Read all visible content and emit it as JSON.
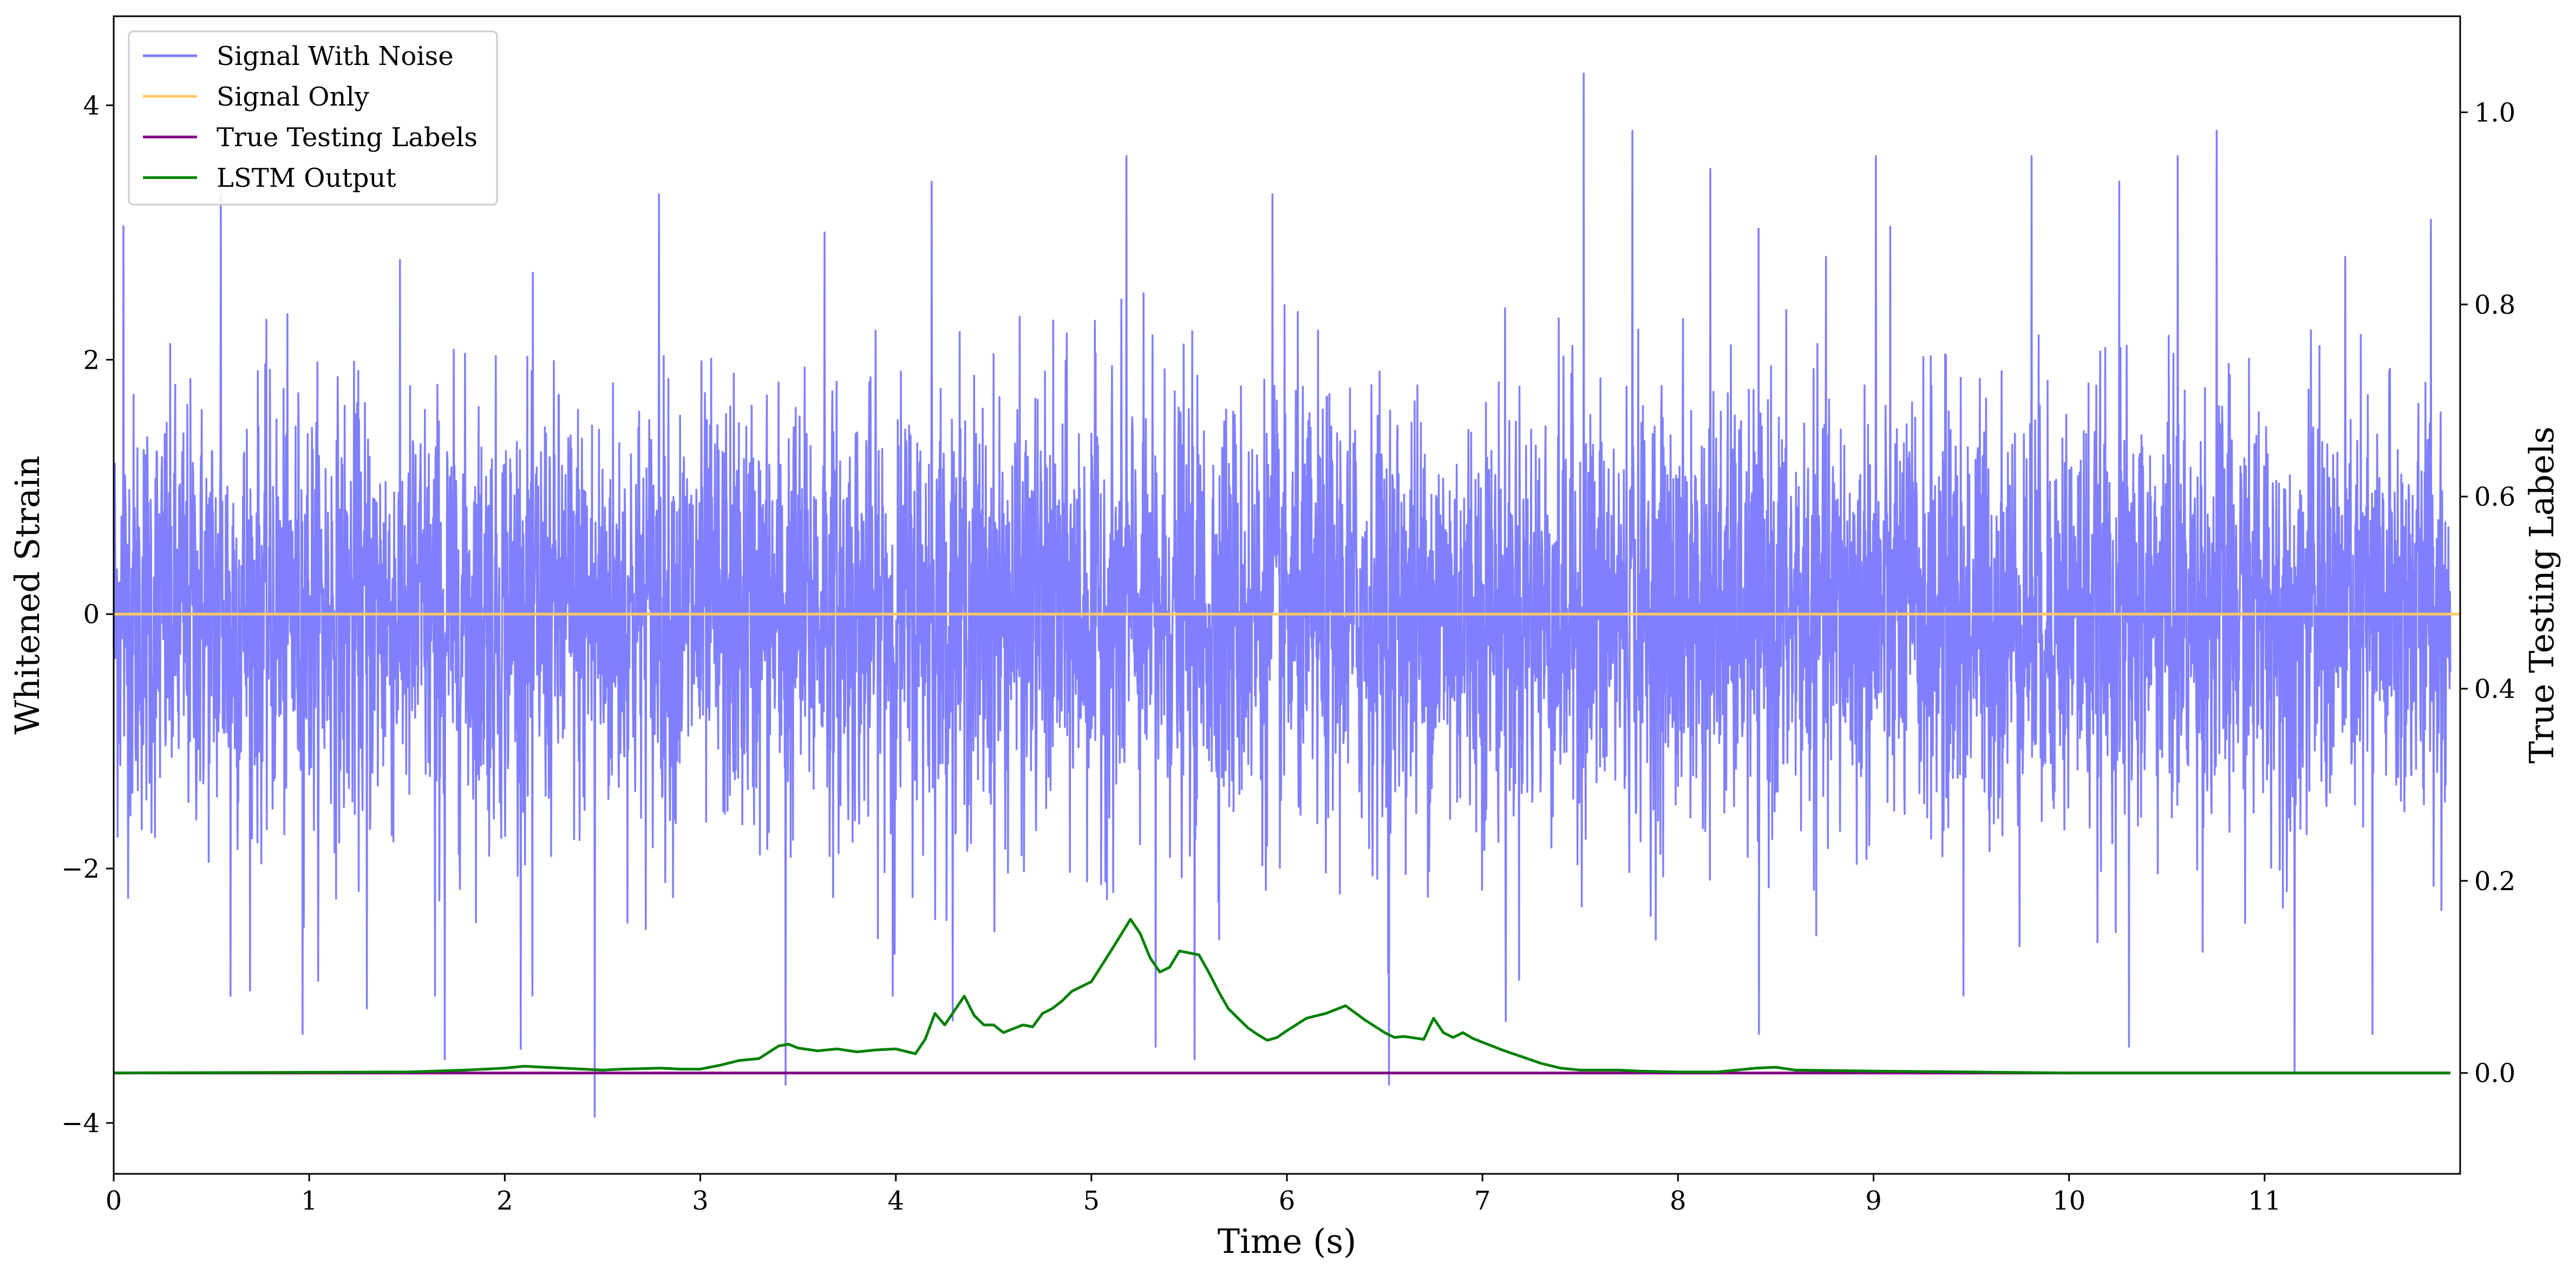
{
  "chart_data": {
    "type": "line",
    "xlabel": "Time (s)",
    "ylabel": "Whitened Strain",
    "ylabel_right": "True Testing Labels",
    "xlim": [
      0,
      12
    ],
    "ylim": [
      -4.4,
      4.7
    ],
    "ylim_right": [
      -0.105,
      1.1
    ],
    "x_ticks": [
      0,
      1,
      2,
      3,
      4,
      5,
      6,
      7,
      8,
      9,
      10,
      11
    ],
    "y_ticks": [
      -4,
      -2,
      0,
      2,
      4
    ],
    "y_ticks_right": [
      0.0,
      0.2,
      0.4,
      0.6,
      0.8,
      1.0
    ],
    "grid": false,
    "legend_position": "top-left",
    "series": [
      {
        "name": "Signal With Noise",
        "axis": "left",
        "color": "#7f7fff",
        "noise_std": 0.85,
        "spikes": [
          [
            0.05,
            3.05
          ],
          [
            0.55,
            3.3
          ],
          [
            0.6,
            -3.0
          ],
          [
            0.97,
            -3.3
          ],
          [
            1.3,
            -3.1
          ],
          [
            1.65,
            -3.0
          ],
          [
            1.7,
            -3.5
          ],
          [
            2.15,
            -3.0
          ],
          [
            2.47,
            -3.95
          ],
          [
            2.8,
            3.3
          ],
          [
            3.45,
            -3.7
          ],
          [
            3.65,
            3.0
          ],
          [
            4.0,
            -3.0
          ],
          [
            4.2,
            3.4
          ],
          [
            5.2,
            3.6
          ],
          [
            5.35,
            -3.4
          ],
          [
            5.55,
            -3.5
          ],
          [
            5.95,
            3.3
          ],
          [
            6.55,
            -3.7
          ],
          [
            7.15,
            -3.2
          ],
          [
            7.55,
            4.25
          ],
          [
            7.8,
            3.8
          ],
          [
            8.2,
            3.5
          ],
          [
            8.45,
            -3.3
          ],
          [
            9.05,
            3.6
          ],
          [
            9.5,
            -3.0
          ],
          [
            9.85,
            3.6
          ],
          [
            10.3,
            3.4
          ],
          [
            10.35,
            -3.4
          ],
          [
            10.6,
            3.6
          ],
          [
            10.8,
            3.8
          ],
          [
            11.2,
            -3.6
          ],
          [
            11.6,
            -3.3
          ],
          [
            11.9,
            3.1
          ]
        ]
      },
      {
        "name": "Signal Only",
        "axis": "left",
        "color": "#ffc966",
        "x": [
          0,
          12
        ],
        "y": [
          0,
          0
        ]
      },
      {
        "name": "True Testing Labels",
        "axis": "right",
        "color": "#800080",
        "x": [
          0,
          11.95
        ],
        "y": [
          0,
          0
        ]
      },
      {
        "name": "LSTM Output",
        "axis": "right",
        "color": "#008000",
        "x": [
          0,
          1.5,
          1.8,
          2.0,
          2.1,
          2.2,
          2.4,
          2.5,
          2.6,
          2.8,
          2.9,
          3.0,
          3.1,
          3.2,
          3.3,
          3.4,
          3.45,
          3.5,
          3.6,
          3.7,
          3.8,
          3.9,
          4.0,
          4.1,
          4.15,
          4.2,
          4.25,
          4.3,
          4.35,
          4.4,
          4.45,
          4.5,
          4.55,
          4.6,
          4.65,
          4.7,
          4.75,
          4.8,
          4.85,
          4.9,
          5.0,
          5.1,
          5.2,
          5.25,
          5.3,
          5.35,
          5.4,
          5.45,
          5.5,
          5.55,
          5.6,
          5.65,
          5.7,
          5.75,
          5.8,
          5.85,
          5.9,
          5.95,
          6.0,
          6.1,
          6.2,
          6.3,
          6.4,
          6.5,
          6.55,
          6.6,
          6.7,
          6.75,
          6.8,
          6.85,
          6.9,
          6.95,
          7.0,
          7.1,
          7.2,
          7.3,
          7.4,
          7.5,
          7.6,
          7.7,
          7.8,
          8.0,
          8.2,
          8.4,
          8.5,
          8.6,
          9.0,
          9.5,
          10.0,
          11.0,
          11.95
        ],
        "y": [
          0.0,
          0.001,
          0.003,
          0.005,
          0.007,
          0.006,
          0.004,
          0.003,
          0.004,
          0.005,
          0.004,
          0.004,
          0.008,
          0.013,
          0.015,
          0.028,
          0.03,
          0.026,
          0.023,
          0.025,
          0.022,
          0.024,
          0.025,
          0.02,
          0.035,
          0.062,
          0.05,
          0.065,
          0.08,
          0.06,
          0.05,
          0.05,
          0.042,
          0.046,
          0.05,
          0.048,
          0.062,
          0.067,
          0.075,
          0.085,
          0.095,
          0.127,
          0.16,
          0.145,
          0.12,
          0.105,
          0.11,
          0.127,
          0.125,
          0.123,
          0.105,
          0.085,
          0.067,
          0.057,
          0.047,
          0.04,
          0.034,
          0.037,
          0.044,
          0.057,
          0.062,
          0.07,
          0.055,
          0.042,
          0.037,
          0.038,
          0.035,
          0.057,
          0.042,
          0.037,
          0.042,
          0.036,
          0.032,
          0.024,
          0.017,
          0.01,
          0.005,
          0.003,
          0.003,
          0.003,
          0.002,
          0.001,
          0.001,
          0.005,
          0.006,
          0.003,
          0.002,
          0.001,
          0.0,
          0.0,
          0.0
        ]
      }
    ]
  }
}
